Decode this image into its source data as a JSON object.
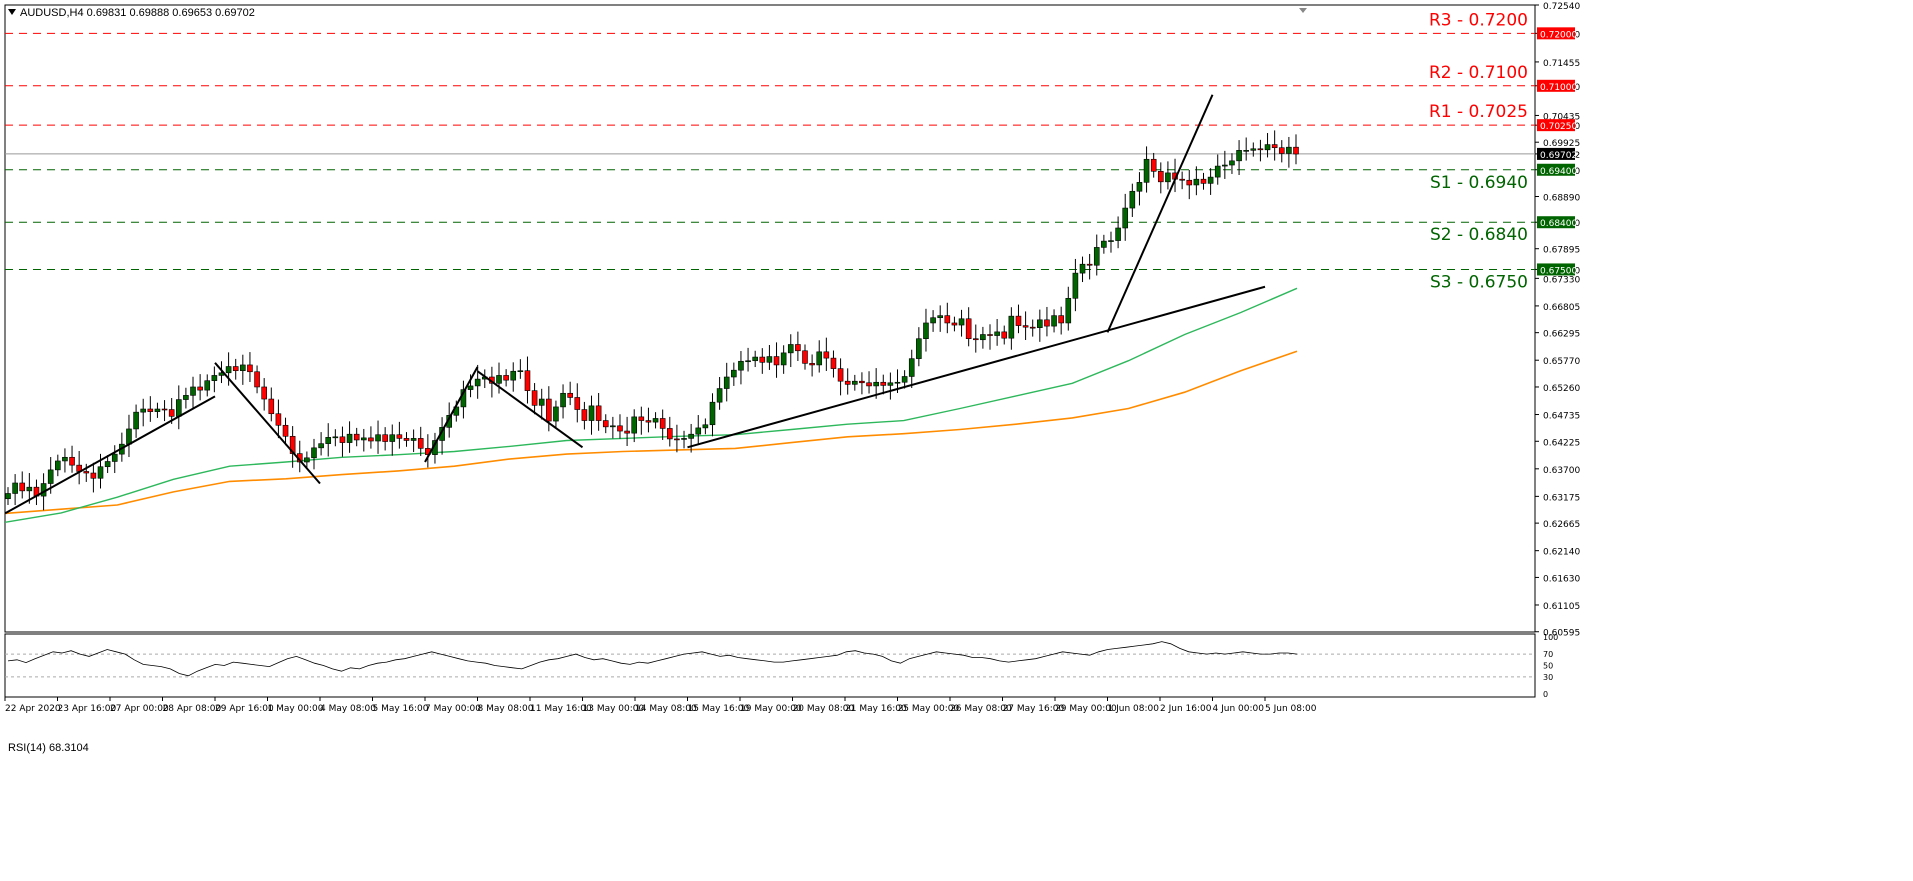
{
  "header": {
    "symbol": "AUDUSD,H4",
    "open": "0.69831",
    "high": "0.69888",
    "low": "0.69653",
    "close": "0.69702"
  },
  "rsi_header": {
    "label": "RSI(14)",
    "value": "68.3104"
  },
  "colors": {
    "resistance": "#ff0000",
    "support": "#006400",
    "bull_candle": "#006400",
    "bear_candle": "#ff0000",
    "ma_fast": "#2eb85c",
    "ma_slow": "#ff8c00",
    "trendline": "#000000",
    "grid": "#d8d8d8"
  },
  "chart_data": [
    {
      "type": "candlestick",
      "symbol": "AUDUSD",
      "timeframe": "H4",
      "ylim": [
        0.6059,
        0.7254
      ],
      "y_tick_labels": [
        "0.72540",
        "0.72000",
        "0.71455",
        "0.71000",
        "0.70435",
        "0.70250",
        "0.69925",
        "0.69702",
        "0.69400",
        "0.68890",
        "0.68400",
        "0.67895",
        "0.67500",
        "0.67330",
        "0.66805",
        "0.66295",
        "0.65770",
        "0.65260",
        "0.64735",
        "0.64225",
        "0.63700",
        "0.63175",
        "0.62665",
        "0.62140",
        "0.61630",
        "0.61105",
        "0.60595"
      ],
      "x_tick_labels": [
        "22 Apr 2020",
        "23 Apr 16:00",
        "27 Apr 00:00",
        "28 Apr 08:00",
        "29 Apr 16:00",
        "1 May 00:00",
        "4 May 08:00",
        "5 May 16:00",
        "7 May 00:00",
        "8 May 08:00",
        "11 May 16:00",
        "13 May 00:00",
        "14 May 08:00",
        "15 May 16:00",
        "19 May 00:00",
        "20 May 08:00",
        "21 May 16:00",
        "25 May 00:00",
        "26 May 08:00",
        "27 May 16:00",
        "29 May 00:00",
        "1 Jun 08:00",
        "2 Jun 16:00",
        "4 Jun 00:00",
        "5 Jun 08:00"
      ],
      "levels": [
        {
          "name": "R3",
          "label": "R3 - 0.7200",
          "value": 0.72,
          "tag": "0.72000",
          "kind": "resistance"
        },
        {
          "name": "R2",
          "label": "R2 - 0.7100",
          "value": 0.71,
          "tag": "0.71000",
          "kind": "resistance"
        },
        {
          "name": "R1",
          "label": "R1 - 0.7025",
          "value": 0.7025,
          "tag": "0.70250",
          "kind": "resistance"
        },
        {
          "name": "S1",
          "label": "S1 - 0.6940",
          "value": 0.694,
          "tag": "0.69400",
          "kind": "support"
        },
        {
          "name": "S2",
          "label": "S2 - 0.6840",
          "value": 0.684,
          "tag": "0.68400",
          "kind": "support"
        },
        {
          "name": "S3",
          "label": "S3 - 0.6750",
          "value": 0.675,
          "tag": "0.67500",
          "kind": "support"
        }
      ],
      "current_price": {
        "value": 0.69702,
        "tag": "0.69702"
      },
      "series": [
        {
          "name": "close",
          "values": [
            0.6323,
            0.6343,
            0.6328,
            0.6335,
            0.6318,
            0.6342,
            0.6368,
            0.6385,
            0.6392,
            0.6377,
            0.6365,
            0.6362,
            0.6352,
            0.6374,
            0.6384,
            0.6398,
            0.6417,
            0.6446,
            0.6478,
            0.6484,
            0.6479,
            0.6484,
            0.6483,
            0.647,
            0.6502,
            0.651,
            0.6526,
            0.652,
            0.6538,
            0.6548,
            0.6553,
            0.6565,
            0.6557,
            0.6568,
            0.6555,
            0.6526,
            0.6503,
            0.6475,
            0.6453,
            0.6432,
            0.6399,
            0.6383,
            0.6391,
            0.641,
            0.6418,
            0.643,
            0.6431,
            0.642,
            0.6436,
            0.6425,
            0.6429,
            0.6423,
            0.6435,
            0.6422,
            0.6435,
            0.6428,
            0.6424,
            0.6428,
            0.6409,
            0.6397,
            0.6424,
            0.6449,
            0.6472,
            0.6488,
            0.6521,
            0.6528,
            0.6541,
            0.6545,
            0.6533,
            0.6548,
            0.6539,
            0.6556,
            0.6557,
            0.6519,
            0.6491,
            0.6503,
            0.6461,
            0.6488,
            0.6514,
            0.6506,
            0.6483,
            0.6462,
            0.649,
            0.6462,
            0.645,
            0.6452,
            0.6442,
            0.6438,
            0.6469,
            0.6462,
            0.6459,
            0.6466,
            0.6447,
            0.6427,
            0.6426,
            0.6428,
            0.6436,
            0.6448,
            0.6454,
            0.6497,
            0.6523,
            0.6545,
            0.6558,
            0.6575,
            0.6576,
            0.6583,
            0.6573,
            0.6584,
            0.6568,
            0.6591,
            0.6607,
            0.6595,
            0.6571,
            0.6568,
            0.6593,
            0.6581,
            0.6561,
            0.6537,
            0.6531,
            0.6537,
            0.6534,
            0.6528,
            0.6535,
            0.6529,
            0.6534,
            0.6535,
            0.6546,
            0.658,
            0.6618,
            0.6648,
            0.6658,
            0.6662,
            0.6648,
            0.6644,
            0.6656,
            0.6618,
            0.6616,
            0.6626,
            0.6624,
            0.6631,
            0.6619,
            0.6661,
            0.6643,
            0.664,
            0.6639,
            0.6654,
            0.6642,
            0.6662,
            0.6648,
            0.6695,
            0.6743,
            0.676,
            0.6758,
            0.6792,
            0.6804,
            0.6805,
            0.6829,
            0.6867,
            0.6899,
            0.6916,
            0.696,
            0.6937,
            0.6917,
            0.6934,
            0.6922,
            0.692,
            0.6911,
            0.6922,
            0.6914,
            0.6926,
            0.6947,
            0.6949,
            0.6957,
            0.6977,
            0.6977,
            0.698,
            0.6978,
            0.6988,
            0.6982,
            0.6971,
            0.6983,
            0.697
          ]
        },
        {
          "name": "MA fast",
          "values": [
            0.6268,
            0.6286,
            0.6316,
            0.635,
            0.6375,
            0.6383,
            0.6392,
            0.6397,
            0.6403,
            0.6413,
            0.6424,
            0.6428,
            0.6432,
            0.6435,
            0.6445,
            0.6455,
            0.6462,
            0.6485,
            0.6509,
            0.6533,
            0.6576,
            0.6626,
            0.6668,
            0.6714
          ]
        },
        {
          "name": "MA slow",
          "values": [
            0.6285,
            0.6293,
            0.6301,
            0.6326,
            0.6346,
            0.6351,
            0.6359,
            0.6366,
            0.6375,
            0.6389,
            0.6398,
            0.6403,
            0.6406,
            0.6409,
            0.642,
            0.6431,
            0.6437,
            0.6445,
            0.6455,
            0.6467,
            0.6485,
            0.6516,
            0.6557,
            0.6594
          ]
        }
      ],
      "trendlines": [
        {
          "from": {
            "date": "22 Apr 2020",
            "price": 0.6285
          },
          "to": {
            "date": "29 Apr 16:00",
            "price": 0.6508
          }
        },
        {
          "from": {
            "date": "29 Apr 16:00",
            "price": 0.6572
          },
          "to": {
            "date": "4 May 08:00",
            "price": 0.6342
          }
        },
        {
          "from": {
            "date": "7 May 00:00",
            "price": 0.6383
          },
          "to": {
            "date": "8 May 08:00",
            "price": 0.6564
          }
        },
        {
          "from": {
            "date": "8 May 08:00",
            "price": 0.6556
          },
          "to": {
            "date": "13 May 00:00",
            "price": 0.6411
          }
        },
        {
          "from": {
            "date": "15 May 16:00",
            "price": 0.6411
          },
          "to": {
            "date": "5 Jun 08:00",
            "price": 0.6717
          }
        },
        {
          "from": {
            "date": "1 Jun 08:00",
            "price": 0.663
          },
          "to": {
            "date": "4 Jun 00:00",
            "price": 0.7083
          }
        }
      ]
    },
    {
      "type": "line",
      "name": "RSI(14)",
      "ylim": [
        0,
        100
      ],
      "y_tick_labels": [
        "100",
        "70",
        "50",
        "30",
        "0"
      ],
      "reference_levels": [
        70,
        30
      ],
      "values": [
        58,
        60,
        55,
        62,
        68,
        74,
        72,
        76,
        70,
        66,
        72,
        78,
        74,
        70,
        60,
        52,
        50,
        48,
        44,
        36,
        32,
        40,
        46,
        52,
        50,
        56,
        54,
        52,
        50,
        48,
        55,
        62,
        66,
        60,
        54,
        50,
        44,
        40,
        46,
        44,
        50,
        54,
        56,
        60,
        62,
        66,
        70,
        74,
        70,
        66,
        62,
        58,
        56,
        54,
        50,
        48,
        46,
        44,
        50,
        56,
        60,
        62,
        66,
        70,
        64,
        60,
        62,
        58,
        54,
        52,
        56,
        54,
        58,
        62,
        66,
        70,
        72,
        74,
        70,
        66,
        68,
        64,
        62,
        60,
        58,
        56,
        56,
        58,
        60,
        62,
        64,
        66,
        68,
        74,
        76,
        72,
        70,
        66,
        58,
        54,
        62,
        66,
        70,
        74,
        72,
        70,
        68,
        64,
        64,
        62,
        58,
        56,
        58,
        60,
        62,
        66,
        70,
        74,
        72,
        70,
        68,
        74,
        78,
        80,
        82,
        84,
        86,
        88,
        92,
        88,
        80,
        74,
        72,
        70,
        72,
        70,
        72,
        74,
        72,
        70,
        70,
        72,
        72,
        70
      ]
    }
  ]
}
